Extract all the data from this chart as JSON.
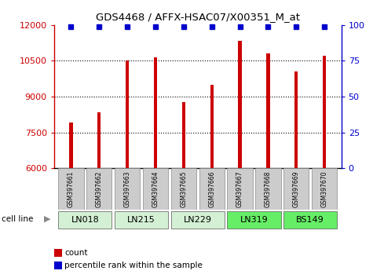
{
  "title": "GDS4468 / AFFX-HSAC07/X00351_M_at",
  "samples": [
    "GSM397661",
    "GSM397662",
    "GSM397663",
    "GSM397664",
    "GSM397665",
    "GSM397666",
    "GSM397667",
    "GSM397668",
    "GSM397669",
    "GSM397670"
  ],
  "counts": [
    7900,
    8350,
    10520,
    10650,
    8780,
    9480,
    11350,
    10800,
    10050,
    10700
  ],
  "percentile_ranks": [
    99,
    99,
    99,
    99,
    99,
    99,
    99,
    99,
    99,
    99
  ],
  "cell_lines": [
    {
      "name": "LN018",
      "samples": [
        0,
        1
      ],
      "color": "#d4f0d4"
    },
    {
      "name": "LN215",
      "samples": [
        2,
        3
      ],
      "color": "#d4f0d4"
    },
    {
      "name": "LN229",
      "samples": [
        4,
        5
      ],
      "color": "#d4f0d4"
    },
    {
      "name": "LN319",
      "samples": [
        6,
        7
      ],
      "color": "#66ee66"
    },
    {
      "name": "BS149",
      "samples": [
        8,
        9
      ],
      "color": "#66ee66"
    }
  ],
  "ylim_left": [
    6000,
    12000
  ],
  "ylim_right": [
    0,
    100
  ],
  "yticks_left": [
    6000,
    7500,
    9000,
    10500,
    12000
  ],
  "yticks_right": [
    0,
    25,
    50,
    75,
    100
  ],
  "bar_color": "#cc0000",
  "percentile_color": "#0000cc",
  "bar_width": 0.12,
  "left_tick_color": "#cc0000",
  "right_tick_color": "#0000cc",
  "legend_count_label": "count",
  "legend_percentile_label": "percentile rank within the sample",
  "cell_line_label": "cell line",
  "grid_color": "#000000",
  "grid_style": "dotted",
  "sample_box_color": "#cccccc",
  "ytick_fontsize": 8,
  "bar_bottom": 6000
}
